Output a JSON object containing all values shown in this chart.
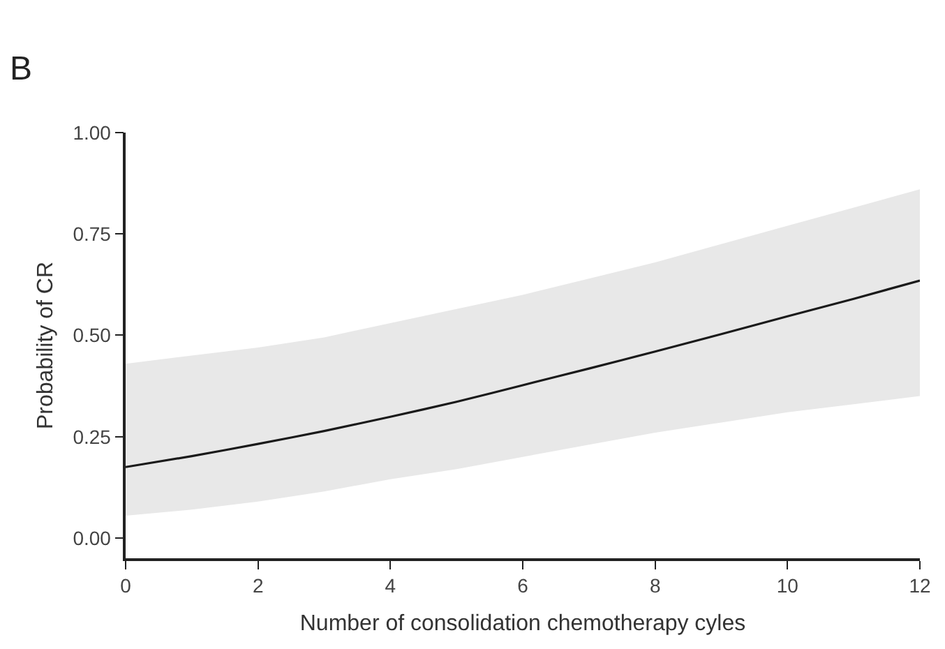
{
  "chart_data": {
    "type": "line",
    "xlabel": "Number of consolidation chemotherapy cyles",
    "ylabel": "Probability of CR",
    "annotations": [
      "B"
    ],
    "x": [
      0,
      1,
      2,
      3,
      4,
      5,
      6,
      7,
      8,
      9,
      10,
      11,
      12
    ],
    "series": [
      {
        "color": "#1a1a1a",
        "values": [
          0.175,
          0.202,
          0.232,
          0.264,
          0.299,
          0.336,
          0.377,
          0.418,
          0.46,
          0.503,
          0.547,
          0.59,
          0.635
        ],
        "lower": [
          0.055,
          0.07,
          0.09,
          0.115,
          0.145,
          0.17,
          0.2,
          0.23,
          0.26,
          0.285,
          0.31,
          0.33,
          0.35
        ],
        "upper": [
          0.43,
          0.45,
          0.47,
          0.495,
          0.53,
          0.565,
          0.6,
          0.64,
          0.68,
          0.725,
          0.77,
          0.815,
          0.86
        ]
      }
    ],
    "xlim": [
      0,
      12
    ],
    "ylim": [
      -0.05,
      1.0
    ],
    "xticks": [
      0,
      2,
      4,
      6,
      8,
      10,
      12
    ],
    "yticks": [
      {
        "value": 0,
        "label": "0.00"
      },
      {
        "value": 0.25,
        "label": "0.25"
      },
      {
        "value": 0.5,
        "label": "0.50"
      },
      {
        "value": 0.75,
        "label": "0.75"
      },
      {
        "value": 1,
        "label": "1.00"
      }
    ],
    "marker": "none",
    "line_style": "solid"
  }
}
